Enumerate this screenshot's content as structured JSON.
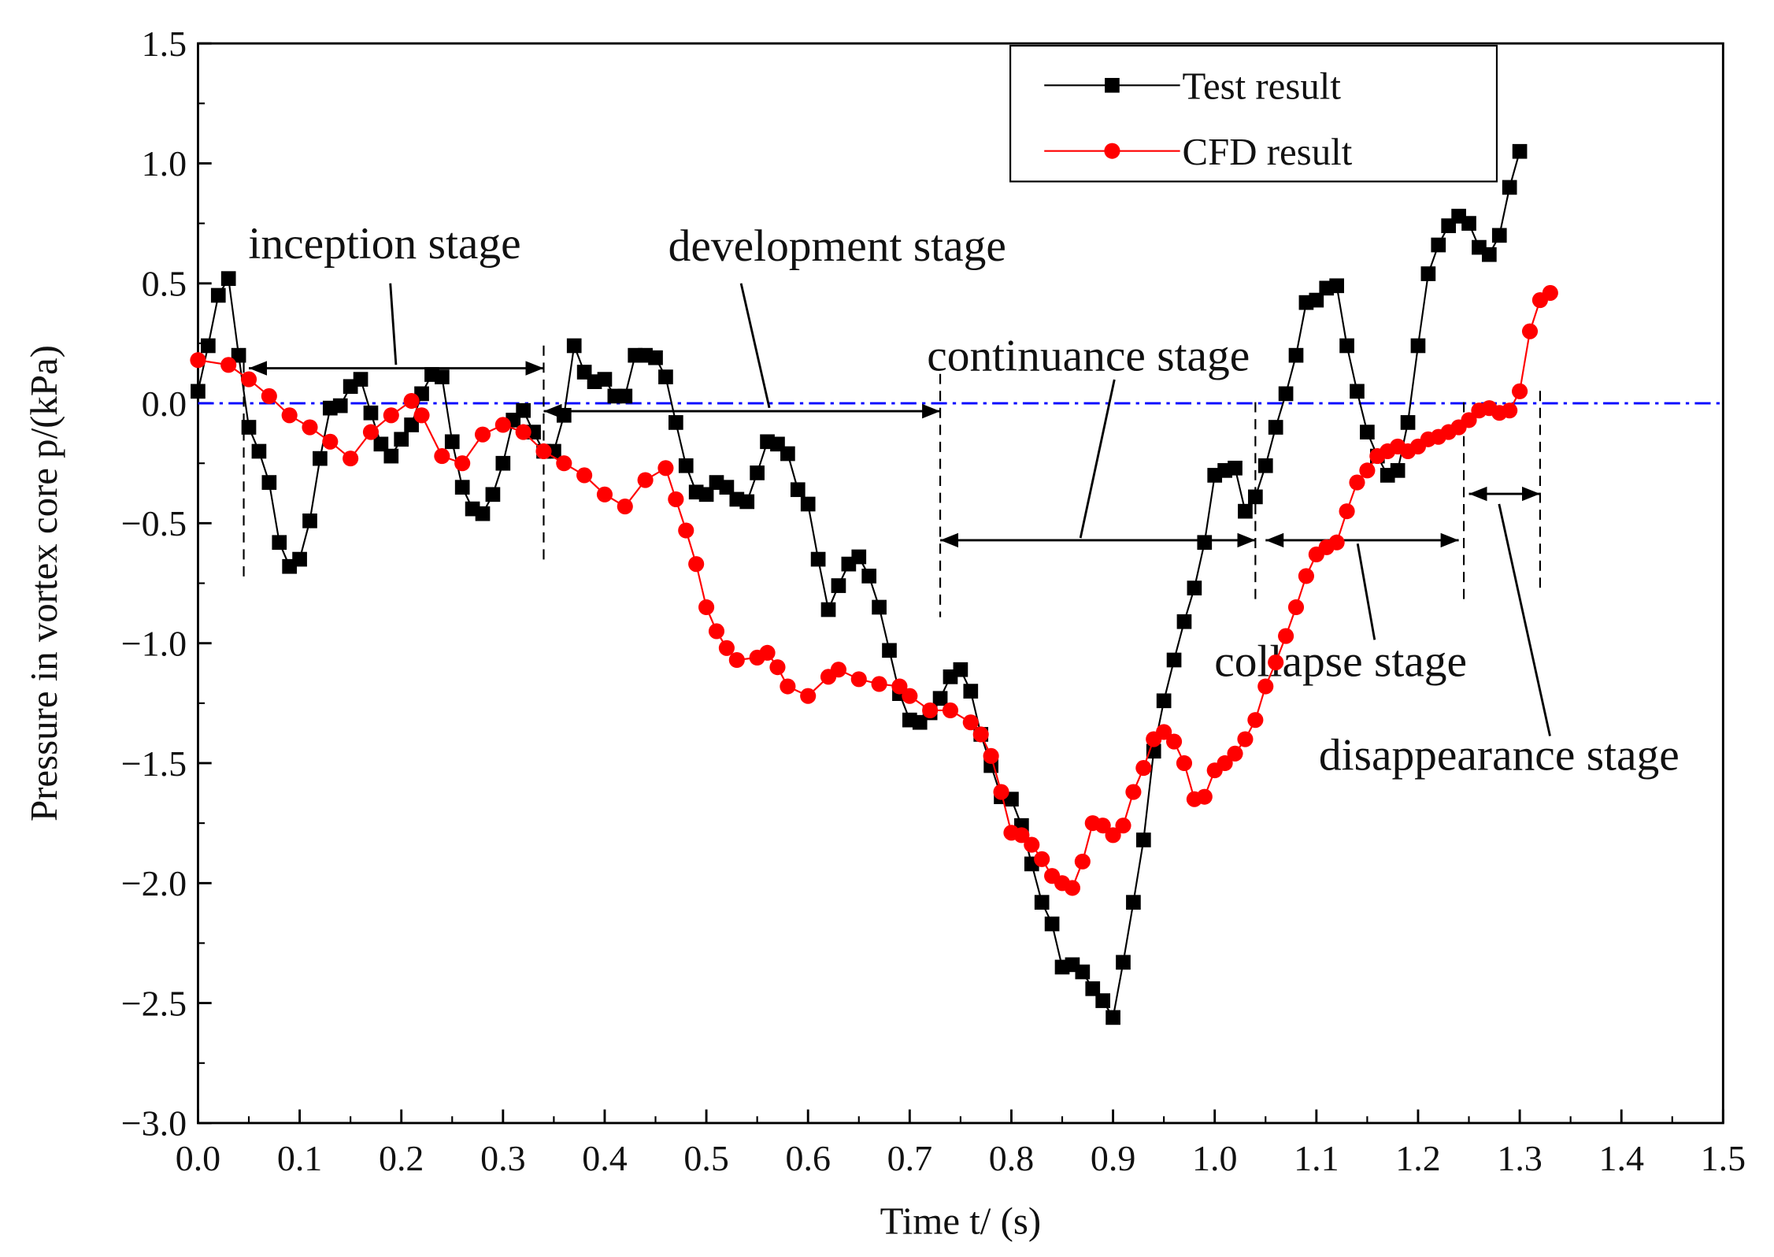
{
  "chart_data": {
    "type": "line",
    "xlabel": "Time t/ (s)",
    "ylabel": "Pressure in vortex core p/(kPa)",
    "xlim": [
      0,
      1.5
    ],
    "ylim": [
      -3.0,
      1.5
    ],
    "xticks": [
      {
        "value": 0,
        "label": "0.0"
      },
      {
        "value": 0.1,
        "label": "0.1"
      },
      {
        "value": 0.2,
        "label": "0.2"
      },
      {
        "value": 0.3,
        "label": "0.3"
      },
      {
        "value": 0.4,
        "label": "0.4"
      },
      {
        "value": 0.5,
        "label": "0.5"
      },
      {
        "value": 0.6,
        "label": "0.6"
      },
      {
        "value": 0.7,
        "label": "0.7"
      },
      {
        "value": 0.8,
        "label": "0.8"
      },
      {
        "value": 0.9,
        "label": "0.9"
      },
      {
        "value": 1.0,
        "label": "1.0"
      },
      {
        "value": 1.1,
        "label": "1.1"
      },
      {
        "value": 1.2,
        "label": "1.2"
      },
      {
        "value": 1.3,
        "label": "1.3"
      },
      {
        "value": 1.4,
        "label": "1.4"
      },
      {
        "value": 1.5,
        "label": "1.5"
      }
    ],
    "yticks": [
      {
        "value": -3.0,
        "label": "−3.0"
      },
      {
        "value": -2.5,
        "label": "−2.5"
      },
      {
        "value": -2.0,
        "label": "−2.0"
      },
      {
        "value": -1.5,
        "label": "−1.5"
      },
      {
        "value": -1.0,
        "label": "−1.0"
      },
      {
        "value": -0.5,
        "label": "−0.5"
      },
      {
        "value": 0,
        "label": "0.0"
      },
      {
        "value": 0.5,
        "label": "0.5"
      },
      {
        "value": 1.0,
        "label": "1.0"
      },
      {
        "value": 1.5,
        "label": "1.5"
      }
    ],
    "reference_line": {
      "y": 0,
      "color": "#0000ff"
    },
    "legend": "upper right",
    "annotations": [
      "inception stage",
      "development stage",
      "continuance stage",
      "collapse stage",
      "disappearance stage"
    ],
    "series": [
      {
        "name": "Test result",
        "color": "#000000",
        "marker": "square",
        "x": [
          0.0,
          0.01,
          0.02,
          0.03,
          0.04,
          0.05,
          0.06,
          0.07,
          0.08,
          0.09,
          0.1,
          0.11,
          0.12,
          0.13,
          0.14,
          0.15,
          0.16,
          0.17,
          0.18,
          0.19,
          0.2,
          0.21,
          0.22,
          0.23,
          0.24,
          0.25,
          0.26,
          0.27,
          0.28,
          0.29,
          0.3,
          0.31,
          0.32,
          0.33,
          0.34,
          0.35,
          0.36,
          0.37,
          0.38,
          0.39,
          0.4,
          0.41,
          0.42,
          0.43,
          0.44,
          0.45,
          0.46,
          0.47,
          0.48,
          0.49,
          0.5,
          0.51,
          0.52,
          0.53,
          0.54,
          0.55,
          0.56,
          0.57,
          0.58,
          0.59,
          0.6,
          0.61,
          0.62,
          0.63,
          0.64,
          0.65,
          0.66,
          0.67,
          0.68,
          0.69,
          0.7,
          0.71,
          0.72,
          0.73,
          0.74,
          0.75,
          0.76,
          0.77,
          0.78,
          0.79,
          0.8,
          0.81,
          0.82,
          0.83,
          0.84,
          0.85,
          0.86,
          0.87,
          0.88,
          0.89,
          0.9,
          0.91,
          0.92,
          0.93,
          0.94,
          0.95,
          0.96,
          0.97,
          0.98,
          0.99,
          1.0,
          1.01,
          1.02,
          1.03,
          1.04,
          1.05,
          1.06,
          1.07,
          1.08,
          1.09,
          1.1,
          1.11,
          1.12,
          1.13,
          1.14,
          1.15,
          1.16,
          1.17,
          1.18,
          1.19,
          1.2,
          1.21,
          1.22,
          1.23,
          1.24,
          1.25,
          1.26,
          1.27,
          1.28,
          1.29,
          1.3
        ],
        "values": [
          0.05,
          0.24,
          0.45,
          0.52,
          0.2,
          -0.1,
          -0.2,
          -0.33,
          -0.58,
          -0.68,
          -0.65,
          -0.49,
          -0.23,
          -0.02,
          -0.01,
          0.07,
          0.1,
          -0.04,
          -0.17,
          -0.22,
          -0.15,
          -0.09,
          0.04,
          0.12,
          0.11,
          -0.16,
          -0.35,
          -0.44,
          -0.46,
          -0.38,
          -0.25,
          -0.07,
          -0.03,
          -0.12,
          -0.2,
          -0.2,
          -0.05,
          0.24,
          0.13,
          0.09,
          0.1,
          0.03,
          0.03,
          0.2,
          0.2,
          0.19,
          0.11,
          -0.08,
          -0.26,
          -0.37,
          -0.38,
          -0.33,
          -0.35,
          -0.4,
          -0.41,
          -0.29,
          -0.16,
          -0.17,
          -0.21,
          -0.36,
          -0.42,
          -0.65,
          -0.86,
          -0.76,
          -0.67,
          -0.64,
          -0.72,
          -0.85,
          -1.03,
          -1.21,
          -1.32,
          -1.33,
          -1.29,
          -1.23,
          -1.14,
          -1.11,
          -1.2,
          -1.38,
          -1.51,
          -1.64,
          -1.65,
          -1.76,
          -1.92,
          -2.08,
          -2.17,
          -2.35,
          -2.34,
          -2.37,
          -2.44,
          -2.49,
          -2.56,
          -2.33,
          -2.08,
          -1.82,
          -1.45,
          -1.24,
          -1.07,
          -0.91,
          -0.77,
          -0.58,
          -0.3,
          -0.28,
          -0.27,
          -0.45,
          -0.39,
          -0.26,
          -0.1,
          0.04,
          0.2,
          0.42,
          0.43,
          0.48,
          0.49,
          0.24,
          0.05,
          -0.12,
          -0.22,
          -0.3,
          -0.28,
          -0.08,
          0.24,
          0.54,
          0.66,
          0.74,
          0.78,
          0.75,
          0.65,
          0.62,
          0.7,
          0.9,
          1.05
        ]
      },
      {
        "name": "CFD result",
        "color": "#ff0000",
        "marker": "circle",
        "x": [
          0.0,
          0.03,
          0.05,
          0.07,
          0.09,
          0.11,
          0.13,
          0.15,
          0.17,
          0.19,
          0.21,
          0.22,
          0.24,
          0.26,
          0.28,
          0.3,
          0.32,
          0.34,
          0.36,
          0.38,
          0.4,
          0.42,
          0.44,
          0.46,
          0.47,
          0.48,
          0.49,
          0.5,
          0.51,
          0.52,
          0.53,
          0.55,
          0.56,
          0.57,
          0.58,
          0.6,
          0.62,
          0.63,
          0.65,
          0.67,
          0.69,
          0.7,
          0.72,
          0.74,
          0.76,
          0.77,
          0.78,
          0.79,
          0.8,
          0.81,
          0.82,
          0.83,
          0.84,
          0.85,
          0.86,
          0.87,
          0.88,
          0.89,
          0.9,
          0.91,
          0.92,
          0.93,
          0.94,
          0.95,
          0.96,
          0.97,
          0.98,
          0.99,
          1.0,
          1.01,
          1.02,
          1.03,
          1.04,
          1.05,
          1.06,
          1.07,
          1.08,
          1.09,
          1.1,
          1.11,
          1.12,
          1.13,
          1.14,
          1.15,
          1.16,
          1.17,
          1.18,
          1.19,
          1.2,
          1.21,
          1.22,
          1.23,
          1.24,
          1.25,
          1.26,
          1.27,
          1.28,
          1.29,
          1.3,
          1.31,
          1.32,
          1.33
        ],
        "values": [
          0.18,
          0.16,
          0.1,
          0.03,
          -0.05,
          -0.1,
          -0.16,
          -0.23,
          -0.12,
          -0.05,
          0.01,
          -0.05,
          -0.22,
          -0.25,
          -0.13,
          -0.09,
          -0.12,
          -0.2,
          -0.25,
          -0.3,
          -0.38,
          -0.43,
          -0.32,
          -0.27,
          -0.4,
          -0.53,
          -0.67,
          -0.85,
          -0.95,
          -1.02,
          -1.07,
          -1.06,
          -1.04,
          -1.1,
          -1.18,
          -1.22,
          -1.14,
          -1.11,
          -1.15,
          -1.17,
          -1.18,
          -1.22,
          -1.28,
          -1.28,
          -1.33,
          -1.38,
          -1.47,
          -1.62,
          -1.79,
          -1.8,
          -1.84,
          -1.9,
          -1.97,
          -2.0,
          -2.02,
          -1.91,
          -1.75,
          -1.76,
          -1.8,
          -1.76,
          -1.62,
          -1.52,
          -1.4,
          -1.37,
          -1.41,
          -1.5,
          -1.65,
          -1.64,
          -1.53,
          -1.5,
          -1.46,
          -1.4,
          -1.32,
          -1.18,
          -1.08,
          -0.97,
          -0.85,
          -0.72,
          -0.63,
          -0.6,
          -0.58,
          -0.45,
          -0.33,
          -0.28,
          -0.22,
          -0.2,
          -0.18,
          -0.2,
          -0.18,
          -0.15,
          -0.14,
          -0.12,
          -0.1,
          -0.07,
          -0.03,
          -0.02,
          -0.04,
          -0.03,
          0.05,
          0.3,
          0.43,
          0.46
        ]
      }
    ]
  }
}
